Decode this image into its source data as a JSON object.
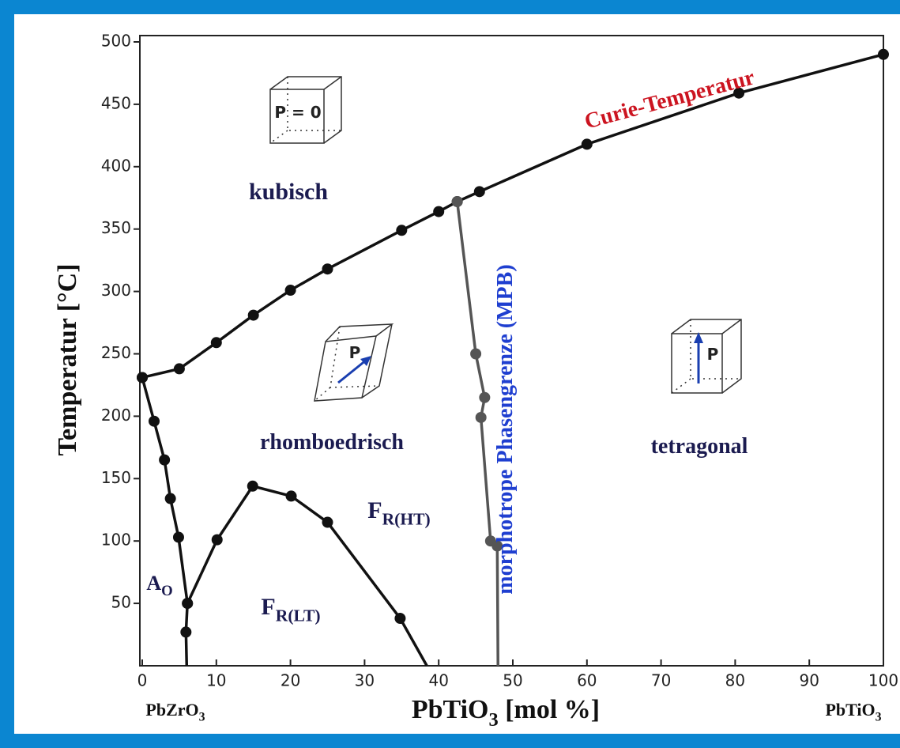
{
  "chart_data": {
    "type": "line",
    "ylabel": "Temperatur [°C]",
    "xlabel": {
      "text": "PbTiO",
      "sub": "3",
      "tail": " [mol %]"
    },
    "xlim": [
      0,
      100
    ],
    "ylim": [
      0,
      500
    ],
    "xticks": [
      0,
      10,
      20,
      30,
      40,
      50,
      60,
      70,
      80,
      90,
      100
    ],
    "yticks": [
      50,
      100,
      150,
      200,
      250,
      300,
      350,
      400,
      450,
      500
    ],
    "series": [
      {
        "name": "Curie-Temperatur",
        "color": "#111111",
        "x": [
          0,
          5,
          10,
          15,
          20,
          25,
          35,
          40,
          42.5,
          45.5,
          60,
          80.5,
          100
        ],
        "values": [
          231,
          238,
          259,
          281,
          301,
          318,
          349,
          364,
          372,
          380,
          418,
          459,
          490
        ]
      },
      {
        "color": "#111111",
        "x": [
          0,
          1.6,
          3,
          3.8,
          4.9,
          6.1,
          5.9,
          6
        ],
        "values": [
          231,
          196,
          165,
          134,
          103,
          50,
          27,
          0
        ]
      },
      {
        "color": "#111111",
        "x": [
          6.1,
          10.1,
          14.9,
          20.1,
          25,
          34.8,
          38.4
        ],
        "values": [
          50,
          101,
          144,
          136,
          115,
          38,
          0
        ]
      },
      {
        "color": "#555555",
        "x": [
          42.5,
          45,
          46.2,
          45.7,
          47,
          47.9,
          48
        ],
        "values": [
          372,
          250,
          215,
          199,
          100,
          96,
          0
        ]
      }
    ],
    "annotations": [
      {
        "text": "kubisch"
      },
      {
        "text": "rhomboedrisch"
      },
      {
        "text": "tetragonal"
      },
      {
        "text": "F",
        "sub": "R(HT)"
      },
      {
        "text": "F",
        "sub": "R(LT)"
      },
      {
        "text": "A",
        "sub": "O"
      },
      {
        "text": "morphotrope Phasengrenze (MPB)"
      },
      {
        "text": "P = 0"
      },
      {
        "text": "P"
      },
      {
        "text": "P"
      }
    ],
    "end_labels": [
      {
        "text": "PbZrO",
        "sub": "3"
      },
      {
        "text": "PbTiO",
        "sub": "3"
      }
    ]
  }
}
